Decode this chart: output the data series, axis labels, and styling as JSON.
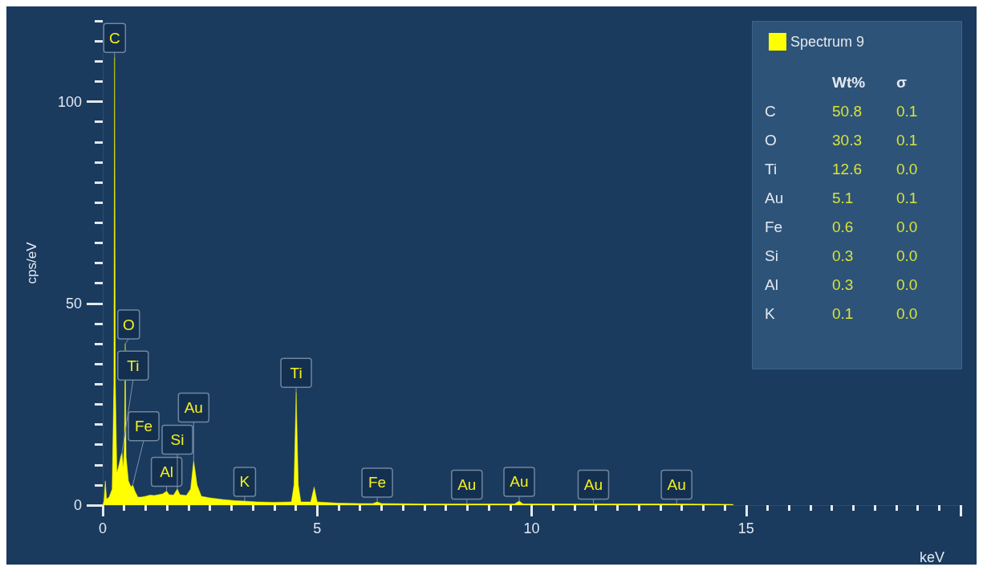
{
  "chart_data": {
    "type": "area",
    "xlabel": "keV",
    "ylabel": "cps/eV",
    "xlim": [
      0,
      20
    ],
    "xticks": [
      0,
      5,
      10,
      15,
      {
        "value": 20,
        "label": null
      }
    ],
    "ylim": [
      0,
      120
    ],
    "yticks": [
      0,
      50,
      100
    ],
    "grid": false,
    "legend": "top right",
    "marker": "none",
    "series": [
      {
        "name": "Spectrum 9",
        "color": "#ffff00",
        "x": [
          0,
          0.03,
          0.06,
          0.09,
          0.15,
          0.22,
          0.26,
          0.277,
          0.295,
          0.33,
          0.38,
          0.42,
          0.45,
          0.48,
          0.505,
          0.525,
          0.545,
          0.6,
          0.66,
          0.7,
          0.75,
          0.82,
          0.9,
          1.0,
          1.1,
          1.2,
          1.3,
          1.4,
          1.49,
          1.55,
          1.65,
          1.74,
          1.8,
          1.95,
          2.05,
          2.12,
          2.2,
          2.3,
          2.5,
          2.8,
          3.1,
          3.31,
          3.6,
          4.0,
          4.4,
          4.46,
          4.51,
          4.56,
          4.62,
          4.85,
          4.93,
          5.0,
          5.5,
          6.0,
          6.3,
          6.4,
          6.5,
          7.5,
          8.49,
          9.0,
          9.6,
          9.71,
          9.8,
          11.44,
          13.38,
          14.7
        ],
        "values": [
          0,
          1,
          6,
          1.5,
          2,
          4,
          30,
          111,
          30,
          8,
          10,
          12,
          13,
          9,
          15,
          40,
          12,
          6,
          4.5,
          5,
          3.5,
          2,
          2,
          2.2,
          2.5,
          2.4,
          2.6,
          2.8,
          3.5,
          2.6,
          2.5,
          4,
          2.6,
          2.4,
          4,
          11,
          5,
          2.2,
          1.8,
          1.4,
          1.1,
          1.0,
          0.8,
          0.7,
          0.8,
          5,
          28,
          5,
          0.8,
          0.8,
          4.5,
          0.8,
          0.5,
          0.4,
          0.4,
          0.8,
          0.4,
          0.3,
          0.3,
          0.3,
          0.3,
          1.0,
          0.3,
          0.3,
          0.3,
          0.2
        ]
      }
    ],
    "annotations": [
      {
        "text": "C",
        "x": 0.277,
        "y": 111
      },
      {
        "text": "O",
        "x": 0.525,
        "y": 40
      },
      {
        "text": "Ti",
        "x": 0.45,
        "y": 13
      },
      {
        "text": "Fe",
        "x": 0.7,
        "y": 5
      },
      {
        "text": "Al",
        "x": 1.49,
        "y": 3.5
      },
      {
        "text": "Si",
        "x": 1.74,
        "y": 4
      },
      {
        "text": "Au",
        "x": 2.12,
        "y": 11
      },
      {
        "text": "K",
        "x": 3.31,
        "y": 1.0
      },
      {
        "text": "Ti",
        "x": 4.51,
        "y": 28
      },
      {
        "text": "Fe",
        "x": 6.4,
        "y": 0.8
      },
      {
        "text": "Au",
        "x": 8.49,
        "y": 0.3
      },
      {
        "text": "Au",
        "x": 9.71,
        "y": 1.0
      },
      {
        "text": "Au",
        "x": 11.44,
        "y": 0.3
      },
      {
        "text": "Au",
        "x": 13.38,
        "y": 0.3
      },
      "Wt%",
      "σ",
      "C",
      "50.8",
      "0.1",
      "O",
      "30.3",
      "0.1",
      "Ti",
      "12.6",
      "0.0",
      "Au",
      "5.1",
      "0.1",
      "Fe",
      "0.6",
      "0.0",
      "Si",
      "0.3",
      "0.0",
      "Al",
      "0.3",
      "0.0",
      "K",
      "0.1",
      "0.0"
    ]
  }
}
